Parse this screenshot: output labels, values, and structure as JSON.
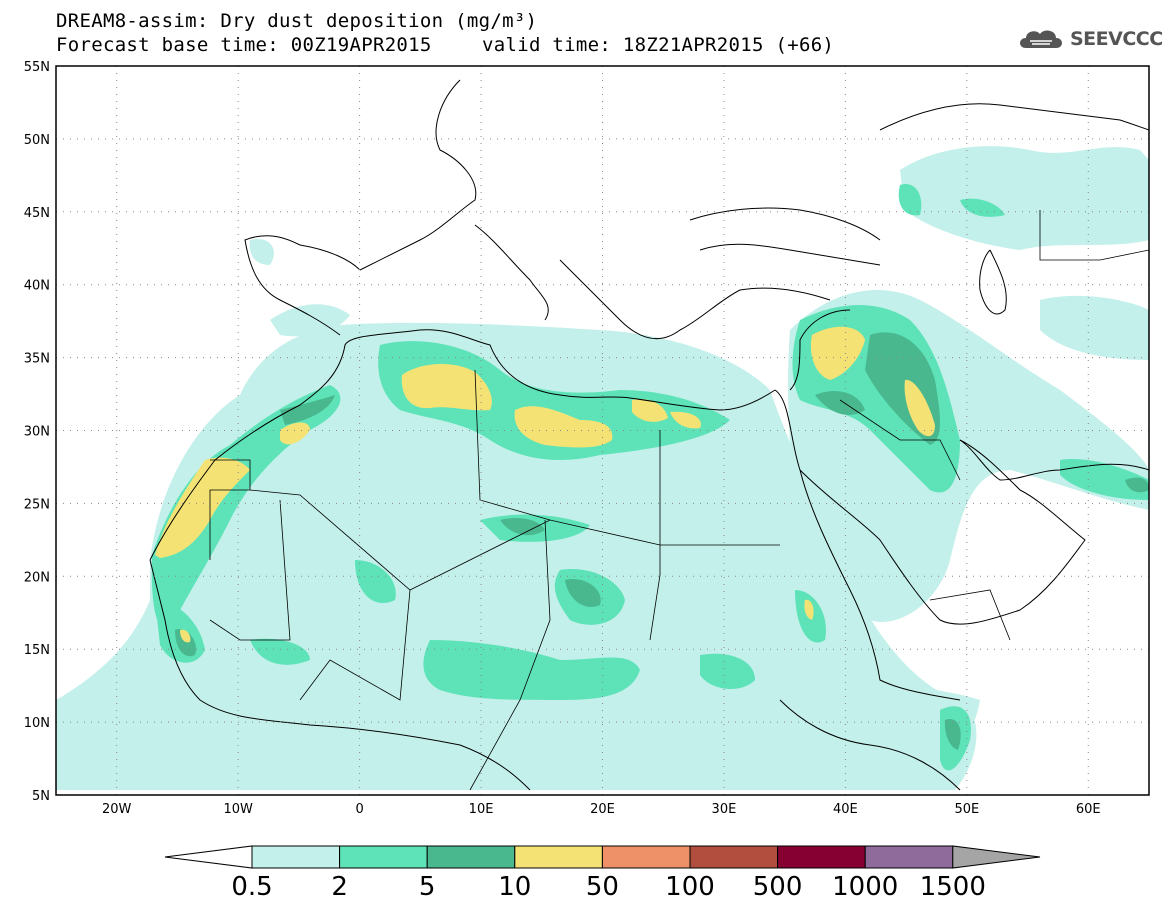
{
  "title": {
    "line1": "DREAM8-assim: Dry dust deposition (mg/m³)",
    "line2_left": "Forecast base time: 00Z19APR2015",
    "line2_right": "valid time: 18Z21APR2015 (+66)"
  },
  "logo": {
    "text": "SEEVCCC",
    "icon": "cloud-icon"
  },
  "map": {
    "lon_range": [
      -25,
      65
    ],
    "lat_range": [
      5,
      55
    ],
    "lat_labels": [
      "5N",
      "10N",
      "15N",
      "20N",
      "25N",
      "30N",
      "35N",
      "40N",
      "45N",
      "50N",
      "55N"
    ],
    "lon_labels": [
      "20W",
      "10W",
      "0",
      "10E",
      "20E",
      "30E",
      "40E",
      "50E",
      "60E"
    ],
    "grid": "dotted",
    "colors": {
      "c1": "#c3f0ea",
      "c2": "#5ee3b9",
      "c3": "#4ab88f",
      "c4": "#f4e374"
    }
  },
  "colorbar": {
    "labels": [
      "0.5",
      "2",
      "5",
      "10",
      "50",
      "100",
      "500",
      "1000",
      "1500"
    ],
    "colors": [
      "#ffffff",
      "#c3f0ea",
      "#5ee3b9",
      "#4ab88f",
      "#f4e374",
      "#ee9068",
      "#b14e3e",
      "#860032",
      "#8f6b9b",
      "#a5a5a5"
    ]
  }
}
